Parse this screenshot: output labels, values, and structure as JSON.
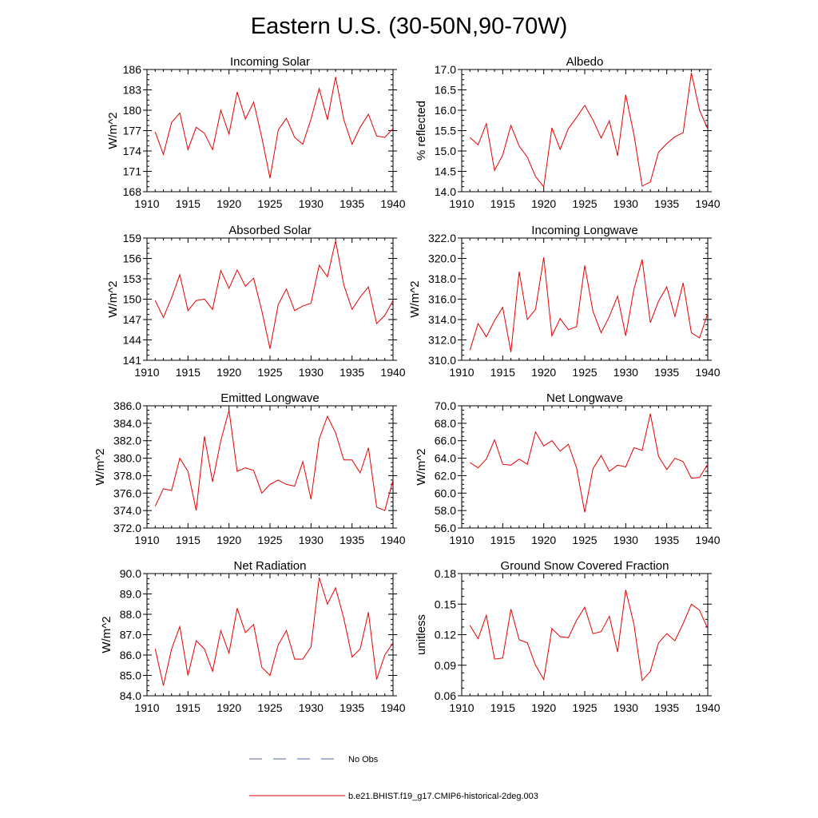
{
  "figure": {
    "title": "Eastern U.S. (30-50N,90-70W)"
  },
  "legend": {
    "entries": [
      {
        "label": "No Obs",
        "style": "dashed",
        "color": "#5566aa"
      },
      {
        "label": "b.e21.BHIST.f19_g17.CMIP6-historical-2deg.003",
        "style": "solid",
        "color": "#e60000"
      }
    ]
  },
  "chart_data": [
    {
      "type": "line",
      "title": "Incoming Solar",
      "ylabel": "W/m^2",
      "xlim": [
        1910,
        1940
      ],
      "ylim": [
        168,
        186
      ],
      "yticks": [
        "168",
        "171",
        "174",
        "177",
        "180",
        "183",
        "186"
      ],
      "xticks": [
        "1910",
        "1915",
        "1920",
        "1925",
        "1930",
        "1935",
        "1940"
      ],
      "x": [
        1911,
        1912,
        1913,
        1914,
        1915,
        1916,
        1917,
        1918,
        1919,
        1920,
        1921,
        1922,
        1923,
        1924,
        1925,
        1926,
        1927,
        1928,
        1929,
        1930,
        1931,
        1932,
        1933,
        1934,
        1935,
        1936,
        1937,
        1938,
        1939,
        1940
      ],
      "series": [
        {
          "color": "#e60000",
          "values": [
            176.8,
            173.5,
            178.2,
            179.6,
            174.2,
            177.5,
            176.6,
            174.2,
            180.0,
            176.5,
            182.7,
            178.7,
            181.2,
            176.0,
            170.0,
            177.1,
            178.8,
            176.0,
            175.0,
            178.7,
            183.2,
            178.6,
            184.9,
            178.6,
            175.0,
            177.5,
            179.4,
            176.2,
            176.0,
            177.3
          ]
        }
      ]
    },
    {
      "type": "line",
      "title": "Albedo",
      "ylabel": "% reflected",
      "xlim": [
        1910,
        1940
      ],
      "ylim": [
        14.0,
        17.0
      ],
      "yticks": [
        "14.0",
        "14.5",
        "15.0",
        "15.5",
        "16.0",
        "16.5",
        "17.0"
      ],
      "xticks": [
        "1910",
        "1915",
        "1920",
        "1925",
        "1930",
        "1935",
        "1940"
      ],
      "x": [
        1911,
        1912,
        1913,
        1914,
        1915,
        1916,
        1917,
        1918,
        1919,
        1920,
        1921,
        1922,
        1923,
        1924,
        1925,
        1926,
        1927,
        1928,
        1929,
        1930,
        1931,
        1932,
        1933,
        1934,
        1935,
        1936,
        1937,
        1938,
        1939,
        1940
      ],
      "series": [
        {
          "color": "#e60000",
          "values": [
            15.33,
            15.15,
            15.67,
            14.52,
            14.9,
            15.63,
            15.12,
            14.85,
            14.37,
            14.12,
            15.57,
            15.04,
            15.55,
            15.82,
            16.12,
            15.76,
            15.32,
            15.74,
            14.88,
            16.38,
            15.4,
            14.14,
            14.24,
            14.97,
            15.18,
            15.35,
            15.45,
            16.92,
            16.0,
            15.54
          ]
        }
      ]
    },
    {
      "type": "line",
      "title": "Absorbed Solar",
      "ylabel": "W/m^2",
      "xlim": [
        1910,
        1940
      ],
      "ylim": [
        141,
        159
      ],
      "yticks": [
        "141",
        "144",
        "147",
        "150",
        "153",
        "156",
        "159"
      ],
      "xticks": [
        "1910",
        "1915",
        "1920",
        "1925",
        "1930",
        "1935",
        "1940"
      ],
      "x": [
        1911,
        1912,
        1913,
        1914,
        1915,
        1916,
        1917,
        1918,
        1919,
        1920,
        1921,
        1922,
        1923,
        1924,
        1925,
        1926,
        1927,
        1928,
        1929,
        1930,
        1931,
        1932,
        1933,
        1934,
        1935,
        1936,
        1937,
        1938,
        1939,
        1940
      ],
      "series": [
        {
          "color": "#e60000",
          "values": [
            149.8,
            147.3,
            150.2,
            153.6,
            148.3,
            149.8,
            150.0,
            148.5,
            154.2,
            151.6,
            154.3,
            151.9,
            153.1,
            148.3,
            142.7,
            149.2,
            151.5,
            148.3,
            149.0,
            149.4,
            155.0,
            153.3,
            158.6,
            152.1,
            148.5,
            150.3,
            151.8,
            146.4,
            147.6,
            149.8
          ]
        }
      ]
    },
    {
      "type": "line",
      "title": "Incoming Longwave",
      "ylabel": "W/m^2",
      "xlim": [
        1910,
        1940
      ],
      "ylim": [
        310.0,
        322.0
      ],
      "yticks": [
        "310.0",
        "312.0",
        "314.0",
        "316.0",
        "318.0",
        "320.0",
        "322.0"
      ],
      "xticks": [
        "1910",
        "1915",
        "1920",
        "1925",
        "1930",
        "1935",
        "1940"
      ],
      "x": [
        1911,
        1912,
        1913,
        1914,
        1915,
        1916,
        1917,
        1918,
        1919,
        1920,
        1921,
        1922,
        1923,
        1924,
        1925,
        1926,
        1927,
        1928,
        1929,
        1930,
        1931,
        1932,
        1933,
        1934,
        1935,
        1936,
        1937,
        1938,
        1939,
        1940
      ],
      "series": [
        {
          "color": "#e60000",
          "values": [
            311.0,
            313.6,
            312.3,
            313.9,
            315.2,
            310.8,
            318.7,
            314.0,
            315.0,
            320.1,
            312.4,
            314.1,
            313.0,
            313.3,
            319.3,
            314.8,
            312.7,
            314.3,
            316.3,
            312.4,
            317.0,
            319.9,
            313.7,
            315.8,
            317.2,
            314.3,
            317.6,
            312.7,
            312.2,
            314.6
          ]
        }
      ]
    },
    {
      "type": "line",
      "title": "Emitted Longwave",
      "ylabel": "W/m^2",
      "xlim": [
        1910,
        1940
      ],
      "ylim": [
        372.0,
        386.0
      ],
      "yticks": [
        "372.0",
        "374.0",
        "376.0",
        "378.0",
        "380.0",
        "382.0",
        "384.0",
        "386.0"
      ],
      "xticks": [
        "1910",
        "1915",
        "1920",
        "1925",
        "1930",
        "1935",
        "1940"
      ],
      "x": [
        1911,
        1912,
        1913,
        1914,
        1915,
        1916,
        1917,
        1918,
        1919,
        1920,
        1921,
        1922,
        1923,
        1924,
        1925,
        1926,
        1927,
        1928,
        1929,
        1930,
        1931,
        1932,
        1933,
        1934,
        1935,
        1936,
        1937,
        1938,
        1939,
        1940
      ],
      "series": [
        {
          "color": "#e60000",
          "values": [
            374.5,
            376.5,
            376.3,
            380.0,
            378.5,
            374.0,
            382.5,
            377.3,
            382.0,
            385.5,
            378.5,
            378.9,
            378.6,
            376.0,
            377.0,
            377.5,
            377.0,
            376.8,
            379.6,
            375.3,
            382.2,
            384.8,
            382.9,
            379.8,
            379.8,
            378.3,
            381.2,
            374.4,
            374.0,
            377.5
          ]
        }
      ]
    },
    {
      "type": "line",
      "title": "Net Longwave",
      "ylabel": "W/m^2",
      "xlim": [
        1910,
        1940
      ],
      "ylim": [
        56.0,
        70.0
      ],
      "yticks": [
        "56.0",
        "58.0",
        "60.0",
        "62.0",
        "64.0",
        "66.0",
        "68.0",
        "70.0"
      ],
      "xticks": [
        "1910",
        "1915",
        "1920",
        "1925",
        "1930",
        "1935",
        "1940"
      ],
      "x": [
        1911,
        1912,
        1913,
        1914,
        1915,
        1916,
        1917,
        1918,
        1919,
        1920,
        1921,
        1922,
        1923,
        1924,
        1925,
        1926,
        1927,
        1928,
        1929,
        1930,
        1931,
        1932,
        1933,
        1934,
        1935,
        1936,
        1937,
        1938,
        1939,
        1940
      ],
      "series": [
        {
          "color": "#e60000",
          "values": [
            63.5,
            62.9,
            63.9,
            66.1,
            63.3,
            63.2,
            63.9,
            63.3,
            67.0,
            65.4,
            66.0,
            64.8,
            65.6,
            62.9,
            57.8,
            62.8,
            64.3,
            62.5,
            63.2,
            63.0,
            65.2,
            64.9,
            69.1,
            64.2,
            62.7,
            64.0,
            63.6,
            61.7,
            61.8,
            63.3
          ]
        }
      ]
    },
    {
      "type": "line",
      "title": "Net Radiation",
      "ylabel": "W/m^2",
      "xlim": [
        1910,
        1940
      ],
      "ylim": [
        84.0,
        90.0
      ],
      "yticks": [
        "84.0",
        "85.0",
        "86.0",
        "87.0",
        "88.0",
        "89.0",
        "90.0"
      ],
      "xticks": [
        "1910",
        "1915",
        "1920",
        "1925",
        "1930",
        "1935",
        "1940"
      ],
      "x": [
        1911,
        1912,
        1913,
        1914,
        1915,
        1916,
        1917,
        1918,
        1919,
        1920,
        1921,
        1922,
        1923,
        1924,
        1925,
        1926,
        1927,
        1928,
        1929,
        1930,
        1931,
        1932,
        1933,
        1934,
        1935,
        1936,
        1937,
        1938,
        1939,
        1940
      ],
      "series": [
        {
          "color": "#e60000",
          "values": [
            86.3,
            84.5,
            86.3,
            87.4,
            85.0,
            86.7,
            86.3,
            85.2,
            87.2,
            86.1,
            88.3,
            87.1,
            87.5,
            85.4,
            85.0,
            86.5,
            87.2,
            85.8,
            85.8,
            86.4,
            89.8,
            88.5,
            89.3,
            87.8,
            85.9,
            86.3,
            88.1,
            84.8,
            86.0,
            86.6
          ]
        }
      ]
    },
    {
      "type": "line",
      "title": "Ground Snow Covered Fraction",
      "ylabel": "unitless",
      "xlim": [
        1910,
        1940
      ],
      "ylim": [
        0.06,
        0.18
      ],
      "yticks": [
        "0.06",
        "0.09",
        "0.12",
        "0.15",
        "0.18"
      ],
      "xticks": [
        "1910",
        "1915",
        "1920",
        "1925",
        "1930",
        "1935",
        "1940"
      ],
      "x": [
        1911,
        1912,
        1913,
        1914,
        1915,
        1916,
        1917,
        1918,
        1919,
        1920,
        1921,
        1922,
        1923,
        1924,
        1925,
        1926,
        1927,
        1928,
        1929,
        1930,
        1931,
        1932,
        1933,
        1934,
        1935,
        1936,
        1937,
        1938,
        1939,
        1940
      ],
      "series": [
        {
          "color": "#e60000",
          "values": [
            0.129,
            0.116,
            0.139,
            0.096,
            0.097,
            0.145,
            0.115,
            0.112,
            0.09,
            0.076,
            0.126,
            0.118,
            0.117,
            0.134,
            0.147,
            0.121,
            0.123,
            0.138,
            0.103,
            0.164,
            0.13,
            0.075,
            0.084,
            0.112,
            0.121,
            0.114,
            0.131,
            0.15,
            0.144,
            0.126
          ]
        }
      ]
    }
  ]
}
